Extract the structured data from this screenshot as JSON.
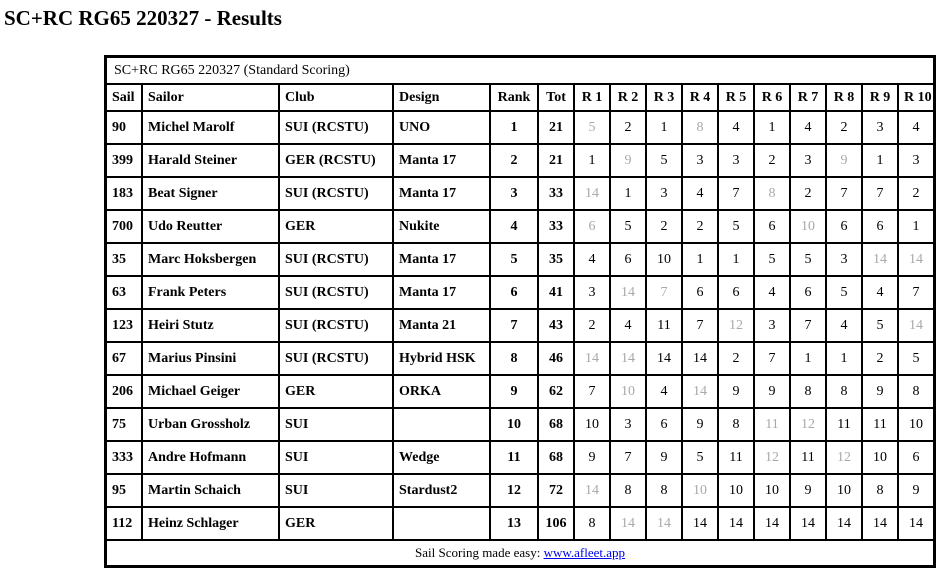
{
  "page": {
    "title": "SC+RC RG65 220327 - Results"
  },
  "table": {
    "caption": "SC+RC RG65 220327 (Standard Scoring)",
    "columns": [
      "Sail",
      "Sailor",
      "Club",
      "Design",
      "Rank",
      "Tot",
      "R 1",
      "R 2",
      "R 3",
      "R 4",
      "R 5",
      "R 6",
      "R 7",
      "R 8",
      "R 9",
      "R 10"
    ],
    "rows": [
      {
        "sail": "90",
        "sailor": "Michel Marolf",
        "club": "SUI (RCSTU)",
        "design": "UNO",
        "rank": "1",
        "tot": "21",
        "races": [
          {
            "v": "5",
            "discard": true
          },
          {
            "v": "2",
            "discard": false
          },
          {
            "v": "1",
            "discard": false
          },
          {
            "v": "8",
            "discard": true
          },
          {
            "v": "4",
            "discard": false
          },
          {
            "v": "1",
            "discard": false
          },
          {
            "v": "4",
            "discard": false
          },
          {
            "v": "2",
            "discard": false
          },
          {
            "v": "3",
            "discard": false
          },
          {
            "v": "4",
            "discard": false
          }
        ]
      },
      {
        "sail": "399",
        "sailor": "Harald Steiner",
        "club": "GER (RCSTU)",
        "design": "Manta 17",
        "rank": "2",
        "tot": "21",
        "races": [
          {
            "v": "1",
            "discard": false
          },
          {
            "v": "9",
            "discard": true
          },
          {
            "v": "5",
            "discard": false
          },
          {
            "v": "3",
            "discard": false
          },
          {
            "v": "3",
            "discard": false
          },
          {
            "v": "2",
            "discard": false
          },
          {
            "v": "3",
            "discard": false
          },
          {
            "v": "9",
            "discard": true
          },
          {
            "v": "1",
            "discard": false
          },
          {
            "v": "3",
            "discard": false
          }
        ]
      },
      {
        "sail": "183",
        "sailor": "Beat Signer",
        "club": "SUI (RCSTU)",
        "design": "Manta 17",
        "rank": "3",
        "tot": "33",
        "races": [
          {
            "v": "14",
            "discard": true
          },
          {
            "v": "1",
            "discard": false
          },
          {
            "v": "3",
            "discard": false
          },
          {
            "v": "4",
            "discard": false
          },
          {
            "v": "7",
            "discard": false
          },
          {
            "v": "8",
            "discard": true
          },
          {
            "v": "2",
            "discard": false
          },
          {
            "v": "7",
            "discard": false
          },
          {
            "v": "7",
            "discard": false
          },
          {
            "v": "2",
            "discard": false
          }
        ]
      },
      {
        "sail": "700",
        "sailor": "Udo Reutter",
        "club": "GER",
        "design": "Nukite",
        "rank": "4",
        "tot": "33",
        "races": [
          {
            "v": "6",
            "discard": true
          },
          {
            "v": "5",
            "discard": false
          },
          {
            "v": "2",
            "discard": false
          },
          {
            "v": "2",
            "discard": false
          },
          {
            "v": "5",
            "discard": false
          },
          {
            "v": "6",
            "discard": false
          },
          {
            "v": "10",
            "discard": true
          },
          {
            "v": "6",
            "discard": false
          },
          {
            "v": "6",
            "discard": false
          },
          {
            "v": "1",
            "discard": false
          }
        ]
      },
      {
        "sail": "35",
        "sailor": "Marc Hoksbergen",
        "club": "SUI (RCSTU)",
        "design": "Manta 17",
        "rank": "5",
        "tot": "35",
        "races": [
          {
            "v": "4",
            "discard": false
          },
          {
            "v": "6",
            "discard": false
          },
          {
            "v": "10",
            "discard": false
          },
          {
            "v": "1",
            "discard": false
          },
          {
            "v": "1",
            "discard": false
          },
          {
            "v": "5",
            "discard": false
          },
          {
            "v": "5",
            "discard": false
          },
          {
            "v": "3",
            "discard": false
          },
          {
            "v": "14",
            "discard": true
          },
          {
            "v": "14",
            "discard": true
          }
        ]
      },
      {
        "sail": "63",
        "sailor": "Frank Peters",
        "club": "SUI (RCSTU)",
        "design": "Manta 17",
        "rank": "6",
        "tot": "41",
        "races": [
          {
            "v": "3",
            "discard": false
          },
          {
            "v": "14",
            "discard": true
          },
          {
            "v": "7",
            "discard": true
          },
          {
            "v": "6",
            "discard": false
          },
          {
            "v": "6",
            "discard": false
          },
          {
            "v": "4",
            "discard": false
          },
          {
            "v": "6",
            "discard": false
          },
          {
            "v": "5",
            "discard": false
          },
          {
            "v": "4",
            "discard": false
          },
          {
            "v": "7",
            "discard": false
          }
        ]
      },
      {
        "sail": "123",
        "sailor": "Heiri Stutz",
        "club": "SUI (RCSTU)",
        "design": "Manta 21",
        "rank": "7",
        "tot": "43",
        "races": [
          {
            "v": "2",
            "discard": false
          },
          {
            "v": "4",
            "discard": false
          },
          {
            "v": "11",
            "discard": false
          },
          {
            "v": "7",
            "discard": false
          },
          {
            "v": "12",
            "discard": true
          },
          {
            "v": "3",
            "discard": false
          },
          {
            "v": "7",
            "discard": false
          },
          {
            "v": "4",
            "discard": false
          },
          {
            "v": "5",
            "discard": false
          },
          {
            "v": "14",
            "discard": true
          }
        ]
      },
      {
        "sail": "67",
        "sailor": "Marius Pinsini",
        "club": "SUI (RCSTU)",
        "design": "Hybrid HSK",
        "rank": "8",
        "tot": "46",
        "races": [
          {
            "v": "14",
            "discard": true
          },
          {
            "v": "14",
            "discard": true
          },
          {
            "v": "14",
            "discard": false
          },
          {
            "v": "14",
            "discard": false
          },
          {
            "v": "2",
            "discard": false
          },
          {
            "v": "7",
            "discard": false
          },
          {
            "v": "1",
            "discard": false
          },
          {
            "v": "1",
            "discard": false
          },
          {
            "v": "2",
            "discard": false
          },
          {
            "v": "5",
            "discard": false
          }
        ]
      },
      {
        "sail": "206",
        "sailor": "Michael Geiger",
        "club": "GER",
        "design": "ORKA",
        "rank": "9",
        "tot": "62",
        "races": [
          {
            "v": "7",
            "discard": false
          },
          {
            "v": "10",
            "discard": true
          },
          {
            "v": "4",
            "discard": false
          },
          {
            "v": "14",
            "discard": true
          },
          {
            "v": "9",
            "discard": false
          },
          {
            "v": "9",
            "discard": false
          },
          {
            "v": "8",
            "discard": false
          },
          {
            "v": "8",
            "discard": false
          },
          {
            "v": "9",
            "discard": false
          },
          {
            "v": "8",
            "discard": false
          }
        ]
      },
      {
        "sail": "75",
        "sailor": "Urban Grossholz",
        "club": "SUI",
        "design": "",
        "rank": "10",
        "tot": "68",
        "races": [
          {
            "v": "10",
            "discard": false
          },
          {
            "v": "3",
            "discard": false
          },
          {
            "v": "6",
            "discard": false
          },
          {
            "v": "9",
            "discard": false
          },
          {
            "v": "8",
            "discard": false
          },
          {
            "v": "11",
            "discard": true
          },
          {
            "v": "12",
            "discard": true
          },
          {
            "v": "11",
            "discard": false
          },
          {
            "v": "11",
            "discard": false
          },
          {
            "v": "10",
            "discard": false
          }
        ]
      },
      {
        "sail": "333",
        "sailor": "Andre Hofmann",
        "club": "SUI",
        "design": "Wedge",
        "rank": "11",
        "tot": "68",
        "races": [
          {
            "v": "9",
            "discard": false
          },
          {
            "v": "7",
            "discard": false
          },
          {
            "v": "9",
            "discard": false
          },
          {
            "v": "5",
            "discard": false
          },
          {
            "v": "11",
            "discard": false
          },
          {
            "v": "12",
            "discard": true
          },
          {
            "v": "11",
            "discard": false
          },
          {
            "v": "12",
            "discard": true
          },
          {
            "v": "10",
            "discard": false
          },
          {
            "v": "6",
            "discard": false
          }
        ]
      },
      {
        "sail": "95",
        "sailor": "Martin Schaich",
        "club": "SUI",
        "design": "Stardust2",
        "rank": "12",
        "tot": "72",
        "races": [
          {
            "v": "14",
            "discard": true
          },
          {
            "v": "8",
            "discard": false
          },
          {
            "v": "8",
            "discard": false
          },
          {
            "v": "10",
            "discard": true
          },
          {
            "v": "10",
            "discard": false
          },
          {
            "v": "10",
            "discard": false
          },
          {
            "v": "9",
            "discard": false
          },
          {
            "v": "10",
            "discard": false
          },
          {
            "v": "8",
            "discard": false
          },
          {
            "v": "9",
            "discard": false
          }
        ]
      },
      {
        "sail": "112",
        "sailor": "Heinz Schlager",
        "club": "GER",
        "design": "",
        "rank": "13",
        "tot": "106",
        "races": [
          {
            "v": "8",
            "discard": false
          },
          {
            "v": "14",
            "discard": true
          },
          {
            "v": "14",
            "discard": true
          },
          {
            "v": "14",
            "discard": false
          },
          {
            "v": "14",
            "discard": false
          },
          {
            "v": "14",
            "discard": false
          },
          {
            "v": "14",
            "discard": false
          },
          {
            "v": "14",
            "discard": false
          },
          {
            "v": "14",
            "discard": false
          },
          {
            "v": "14",
            "discard": false
          }
        ]
      }
    ],
    "footer_text": "Sail Scoring made easy: ",
    "footer_link": "www.afleet.app"
  },
  "colors": {
    "discard_gray": "#a9a9a9",
    "link_blue": "#0000ee",
    "border_black": "#000000"
  }
}
